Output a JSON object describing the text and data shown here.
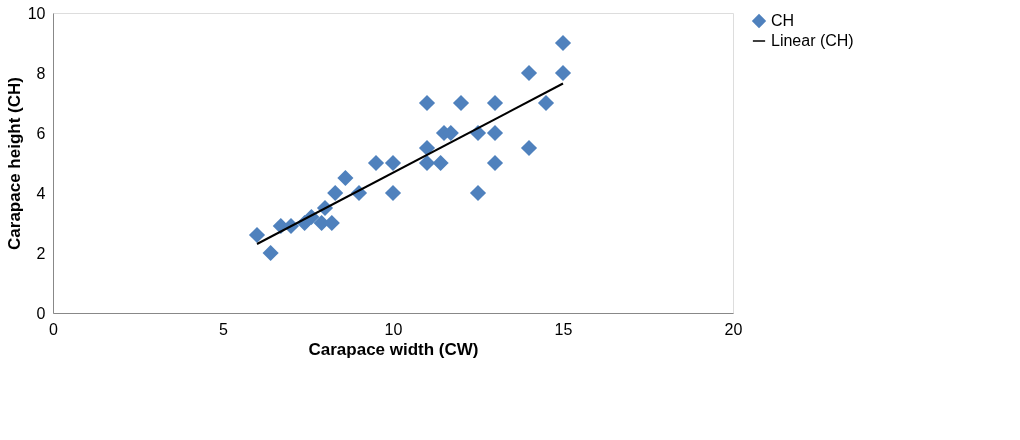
{
  "chart_data": {
    "type": "scatter",
    "xlabel": "Carapace width (CW)",
    "ylabel": "Carapace height (CH)",
    "xlim": [
      0,
      20
    ],
    "xticks": [
      0,
      5,
      10,
      15,
      20
    ],
    "ylim": [
      0,
      10
    ],
    "yticks": [
      0,
      2,
      4,
      6,
      8,
      10
    ],
    "grid": false,
    "legend": "right",
    "series": [
      {
        "name": "CH",
        "marker": "diamond",
        "color": "#4f81bd",
        "x": [
          6,
          6.4,
          6.7,
          7,
          7.4,
          7.6,
          7.9,
          8,
          8.2,
          8.3,
          8.6,
          9,
          9.5,
          10,
          10,
          11,
          11,
          11,
          11.4,
          11.5,
          11.7,
          12,
          12.5,
          12.5,
          13,
          13,
          13,
          14,
          14,
          14.5,
          15,
          15
        ],
        "values": [
          2.6,
          2,
          2.9,
          2.9,
          3,
          3.2,
          3,
          3.5,
          3,
          4,
          4.5,
          4,
          5,
          5,
          4,
          7,
          5.5,
          5,
          5,
          6,
          6,
          7,
          6,
          4,
          7,
          6,
          5,
          8,
          5.5,
          7,
          9,
          8
        ]
      },
      {
        "name": "Linear (CH)",
        "type": "line",
        "color": "#000000",
        "line_style": "solid",
        "x": [
          6,
          15
        ],
        "values": [
          2.3,
          7.65
        ]
      }
    ]
  }
}
